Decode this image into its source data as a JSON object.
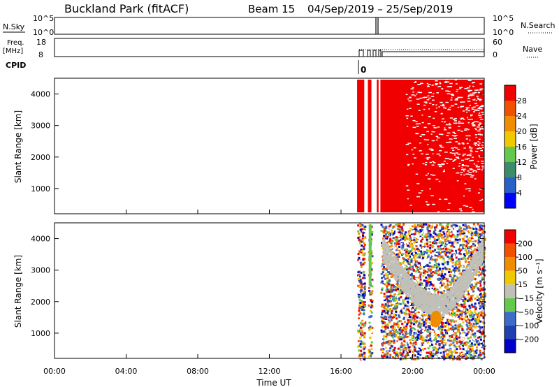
{
  "header": {
    "site": "Buckland Park (fitACF)",
    "beam": "Beam 15",
    "date_range": "04/Sep/2019 – 25/Sep/2019"
  },
  "panels": {
    "nsky_label": "N.Sky",
    "nsearch_label": "N.Search",
    "freq_label": "Freq.",
    "freq_unit": "[MHz]",
    "nave_label": "Nave",
    "cpid_label": "CPID",
    "cpid_value": "0",
    "nsky_ticks": [
      "10^5",
      "10^0"
    ],
    "nsearch_ticks": [
      "10^5",
      "10^0"
    ],
    "freq_ticks": [
      "18",
      "8"
    ],
    "nave_ticks": [
      "60",
      "0"
    ]
  },
  "chart_data": [
    {
      "type": "heatmap",
      "quantity": "power",
      "ylabel": "Slant Range [km]",
      "xlabel": "",
      "ylim": [
        200,
        4500
      ],
      "xlim": [
        0,
        24
      ],
      "yticks": [
        "1000",
        "2000",
        "3000",
        "4000"
      ],
      "xticks": [],
      "colorbar": {
        "label": "Power [dB]",
        "ticks": [
          "4",
          "8",
          "12",
          "16",
          "20",
          "24",
          "28"
        ],
        "colors": [
          "#0000ff",
          "#2860c8",
          "#3c8c6c",
          "#64c84c",
          "#f0c800",
          "#f08c00",
          "#f05000",
          "#f00000"
        ]
      },
      "data_segments_hours": [
        [
          16.9,
          17.3
        ],
        [
          17.5,
          17.7
        ],
        [
          18.0,
          18.1
        ],
        [
          18.2,
          24.0
        ]
      ]
    },
    {
      "type": "heatmap",
      "quantity": "velocity",
      "ylabel": "Slant Range [km]",
      "xlabel": "Time UT",
      "ylim": [
        200,
        4500
      ],
      "xlim": [
        0,
        24
      ],
      "yticks": [
        "1000",
        "2000",
        "3000",
        "4000"
      ],
      "xticks": [
        "00:00",
        "04:00",
        "08:00",
        "12:00",
        "16:00",
        "20:00",
        "00:00"
      ],
      "colorbar": {
        "label": "Velocity [m s⁻¹]",
        "ticks": [
          "200",
          "100",
          "50",
          "15",
          "−15",
          "−50",
          "−100",
          "−200"
        ],
        "colors": [
          "#0000c8",
          "#2040b0",
          "#3c6cc8",
          "#64c84c",
          "#c0c0b8",
          "#f0c800",
          "#f08c00",
          "#f05000",
          "#f00000"
        ]
      }
    }
  ]
}
